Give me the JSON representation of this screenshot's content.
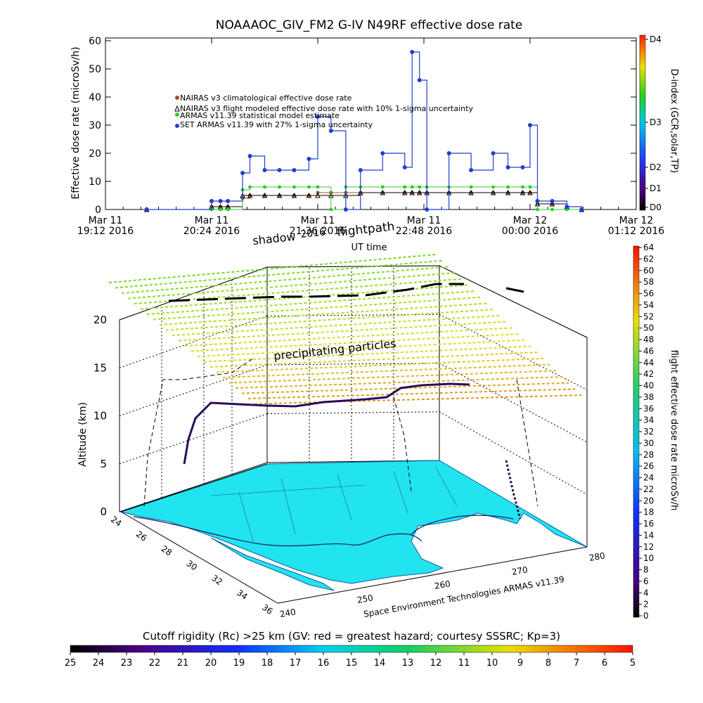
{
  "top_chart": {
    "title": "NOAAAOC_GIV_FM2 G-IV   N49RF  effective dose rate",
    "ylabel": "Effective dose rate (microSv/h)",
    "ylim": [
      0,
      60
    ],
    "y_ticks": [
      "0",
      "10",
      "20",
      "30",
      "40",
      "50",
      "60"
    ],
    "x_ticks": [
      {
        "line1": "Mar 11",
        "line2": "19:12 2016"
      },
      {
        "line1": "Mar 11",
        "line2": "20:24 2016"
      },
      {
        "line1": "Mar 11",
        "line2": "21:36 2016"
      },
      {
        "line1": "Mar 11",
        "line2": "22:48 2016"
      },
      {
        "line1": "Mar 12",
        "line2": "00:00 2016"
      },
      {
        "line1": "Mar 12",
        "line2": "01:12 2016"
      }
    ],
    "xlabel": "UT time",
    "legend": [
      {
        "label": "NAIRAS v3 climatological effective dose rate",
        "color": "#a0522d"
      },
      {
        "label": "NAIRAS v3 flight modeled effective dose rate with 10% 1-sigma uncertainty",
        "color": "#000000"
      },
      {
        "label": "ARMAS v11.39 statistical model estimate",
        "color": "#33cc33"
      },
      {
        "label": "SET ARMAS v11.39 with 27% 1-sigma uncertainty",
        "color": "#1f3fd0"
      }
    ],
    "dindex_label": "D-index (GCR,solar,TP)",
    "dindex_ticks": [
      "D0",
      "D1",
      "D2",
      "D3",
      "D4"
    ]
  },
  "chart_data": {
    "type": "line",
    "title": "NOAAAOC_GIV_FM2 G-IV   N49RF  effective dose rate",
    "xlabel": "UT time",
    "ylabel": "Effective dose rate (microSv/h)",
    "ylim": [
      0,
      60
    ],
    "x": [
      "19:40",
      "20:24",
      "20:30",
      "20:35",
      "20:45",
      "20:50",
      "21:00",
      "21:10",
      "21:20",
      "21:30",
      "21:36",
      "21:45",
      "21:55",
      "22:05",
      "22:20",
      "22:35",
      "22:40",
      "22:45",
      "22:50",
      "23:05",
      "23:20",
      "23:35",
      "23:45",
      "23:55",
      "00:00",
      "00:05",
      "00:15",
      "00:25",
      "00:35"
    ],
    "series": [
      {
        "name": "NAIRAS v3 climatological effective dose rate",
        "values": [
          0,
          1,
          1,
          1,
          4,
          5,
          5,
          5,
          5,
          5,
          6,
          6,
          6,
          6,
          6,
          6,
          6,
          6,
          6,
          6,
          6,
          6,
          6,
          6,
          6,
          2,
          2,
          1,
          0
        ]
      },
      {
        "name": "NAIRAS v3 flight modeled effective dose rate with 10% 1-sigma uncertainty",
        "values": [
          0,
          1,
          1,
          1,
          5,
          5,
          5,
          5,
          5,
          5,
          5,
          5,
          5,
          6,
          6,
          6,
          6,
          6,
          6,
          6,
          6,
          6,
          6,
          6,
          6,
          2,
          2,
          1,
          0
        ]
      },
      {
        "name": "ARMAS v11.39 statistical model estimate",
        "values": [
          0,
          0,
          0,
          0,
          7,
          8,
          8,
          8,
          8,
          8,
          8,
          0,
          8,
          8,
          8,
          8,
          8,
          8,
          8,
          8,
          8,
          8,
          8,
          8,
          8,
          0,
          0,
          0,
          0
        ]
      },
      {
        "name": "SET ARMAS v11.39 with 27% 1-sigma uncertainty",
        "values": [
          0,
          3,
          3,
          3,
          13,
          19,
          14,
          14,
          14,
          18,
          33,
          28,
          0,
          14,
          20,
          15,
          56,
          46,
          0,
          20,
          14,
          20,
          15,
          15,
          30,
          3,
          3,
          1,
          0
        ]
      }
    ]
  },
  "bottom_chart": {
    "ylabel": "Altitude (km)",
    "z_ticks": [
      "0",
      "5",
      "10",
      "15",
      "20"
    ],
    "lat_ticks": [
      "24",
      "26",
      "28",
      "30",
      "32",
      "34",
      "36"
    ],
    "lon_ticks": [
      "240",
      "250",
      "260",
      "270",
      "280"
    ],
    "label_shadow": "shadow",
    "label_year": "2016",
    "label_flightpath": "flightpath",
    "label_precip": "precipitating particles",
    "credit": "Space Environment Technologies ARMAS v11.39",
    "dose_cbar_label": "flight effective dose rate microSv/h",
    "dose_cbar_ticks": [
      "0",
      "2",
      "4",
      "6",
      "8",
      "10",
      "12",
      "14",
      "16",
      "18",
      "20",
      "22",
      "24",
      "26",
      "28",
      "30",
      "32",
      "34",
      "36",
      "38",
      "40",
      "42",
      "44",
      "46",
      "48",
      "50",
      "52",
      "54",
      "56",
      "58",
      "60",
      "62",
      "64"
    ],
    "rc_label": "Cutoff rigidity (Rc) >25 km (GV: red = greatest hazard; courtesy SSSRC; Kp=3)",
    "rc_ticks": [
      "25",
      "24",
      "23",
      "22",
      "21",
      "20",
      "19",
      "18",
      "17",
      "16",
      "15",
      "14",
      "13",
      "12",
      "11",
      "10",
      "9",
      "8",
      "7",
      "6",
      "5"
    ]
  }
}
